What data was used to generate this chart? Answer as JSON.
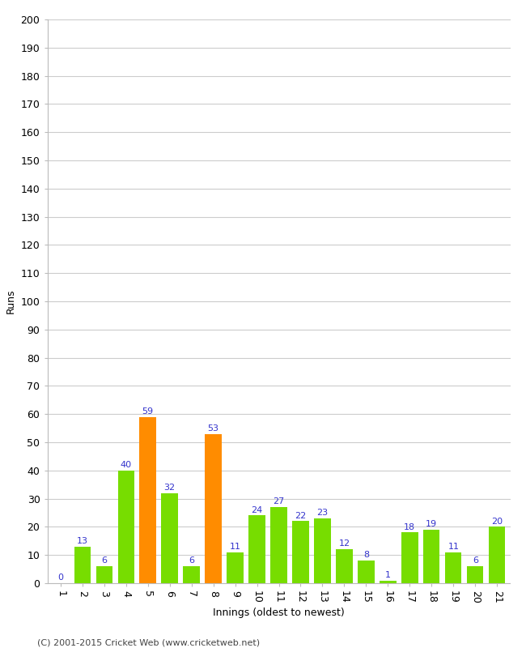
{
  "categories": [
    "1",
    "2",
    "3",
    "4",
    "5",
    "6",
    "7",
    "8",
    "9",
    "10",
    "11",
    "12",
    "13",
    "14",
    "15",
    "16",
    "17",
    "18",
    "19",
    "20",
    "21"
  ],
  "values": [
    0,
    13,
    6,
    40,
    59,
    32,
    6,
    53,
    11,
    24,
    27,
    22,
    23,
    12,
    8,
    1,
    18,
    19,
    11,
    6,
    20
  ],
  "bar_colors": [
    "#77dd00",
    "#77dd00",
    "#77dd00",
    "#77dd00",
    "#ff8c00",
    "#77dd00",
    "#77dd00",
    "#ff8c00",
    "#77dd00",
    "#77dd00",
    "#77dd00",
    "#77dd00",
    "#77dd00",
    "#77dd00",
    "#77dd00",
    "#77dd00",
    "#77dd00",
    "#77dd00",
    "#77dd00",
    "#77dd00",
    "#77dd00"
  ],
  "label_color": "#3333cc",
  "xlabel": "Innings (oldest to newest)",
  "ylabel": "Runs",
  "ylim": [
    0,
    200
  ],
  "ytick_step": 10,
  "background_color": "#ffffff",
  "grid_color": "#cccccc",
  "footer": "(C) 2001-2015 Cricket Web (www.cricketweb.net)",
  "label_fontsize": 8,
  "tick_fontsize": 9,
  "axis_label_fontsize": 9
}
